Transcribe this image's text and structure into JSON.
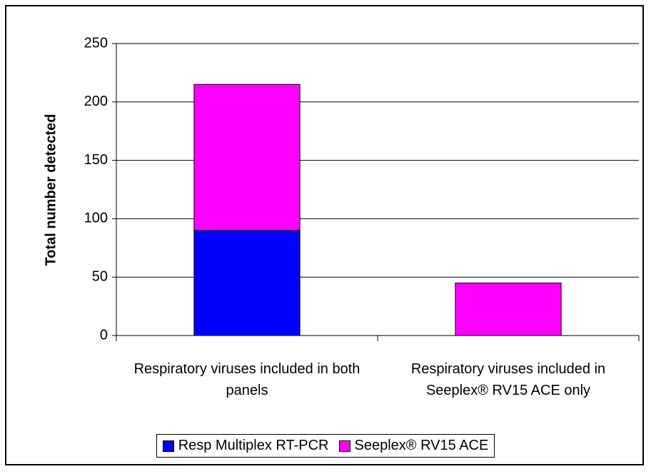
{
  "chart_data": {
    "type": "bar",
    "stacked": true,
    "y_label": "Total number detected",
    "categories": [
      "Respiratory viruses included in both panels",
      "Respiratory viruses included in Seeplex® RV15 ACE only"
    ],
    "series": [
      {
        "name": "Resp Multiplex RT-PCR",
        "color": "#0000ff",
        "values": [
          90,
          0
        ]
      },
      {
        "name": "Seeplex® RV15 ACE",
        "color": "#ff00ff",
        "values": [
          125,
          45
        ]
      }
    ],
    "ylim": [
      0,
      250
    ],
    "yticks": [
      0,
      50,
      100,
      150,
      200,
      250
    ],
    "grid": true
  }
}
